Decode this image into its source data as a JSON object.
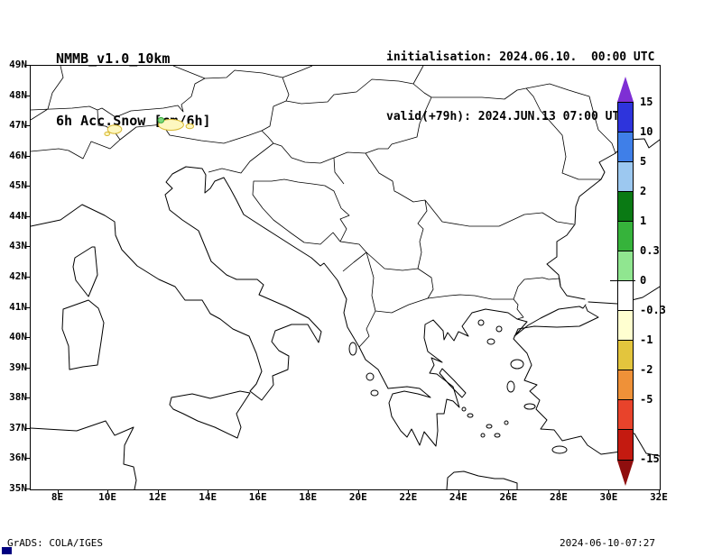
{
  "header": {
    "model": "NMMB_v1.0_10km",
    "field": "6h Acc.Snow [cm/6h]",
    "init": "initialisation: 2024.06.10.  00:00 UTC",
    "valid": "valid(+79h): 2024.JUN.13 07:00 UTC"
  },
  "footer": {
    "credit": "GrADS: COLA/IGES",
    "generated": "2024-06-10-07:27"
  },
  "map": {
    "lat_ticks": [
      "49N",
      "48N",
      "47N",
      "46N",
      "45N",
      "44N",
      "43N",
      "42N",
      "41N",
      "40N",
      "39N",
      "38N",
      "37N",
      "36N",
      "35N"
    ],
    "lon_ticks": [
      "8E",
      "10E",
      "12E",
      "14E",
      "16E",
      "18E",
      "20E",
      "22E",
      "24E",
      "26E",
      "28E",
      "30E",
      "32E"
    ]
  },
  "colorbar": {
    "arrow_top_color": "#7e2fd4",
    "arrow_bottom_color": "#8f0e0e",
    "bottom_label": "-15",
    "bands": [
      {
        "color": "#2e34dc",
        "label": "15"
      },
      {
        "color": "#3f7fe8",
        "label": "10"
      },
      {
        "color": "#9cc8f0",
        "label": "5"
      },
      {
        "color": "#0a7a14",
        "label": "2"
      },
      {
        "color": "#36b33b",
        "label": "1"
      },
      {
        "color": "#90e690",
        "label": "0.3"
      },
      {
        "color": "#ffffff",
        "label": "0"
      },
      {
        "color": "#ffffd0",
        "label": "-0.3"
      },
      {
        "color": "#e3c53d",
        "label": "-1"
      },
      {
        "color": "#ef9138",
        "label": "-2"
      },
      {
        "color": "#e8432b",
        "label": "-5"
      },
      {
        "color": "#c41a10",
        "label": ""
      }
    ]
  },
  "snow_spots": [
    {
      "lon": 10.25,
      "lat": 46.9,
      "rx_deg": 0.28,
      "ry_deg": 0.14,
      "color": "#fdf7c0",
      "outline": "#d8b832"
    },
    {
      "lon": 12.5,
      "lat": 47.05,
      "rx_deg": 0.5,
      "ry_deg": 0.18,
      "color": "#fdf7c0",
      "outline": "#d8b832"
    },
    {
      "lon": 12.1,
      "lat": 47.2,
      "rx_deg": 0.12,
      "ry_deg": 0.09,
      "color": "#7ed87e",
      "outline": "#3aa83a"
    },
    {
      "lon": 13.25,
      "lat": 47.0,
      "rx_deg": 0.15,
      "ry_deg": 0.08,
      "color": "#fdf7c0",
      "outline": "#d8b832"
    },
    {
      "lon": 9.95,
      "lat": 46.75,
      "rx_deg": 0.1,
      "ry_deg": 0.06,
      "color": "#fdf7c0",
      "outline": "#d8b832"
    }
  ]
}
